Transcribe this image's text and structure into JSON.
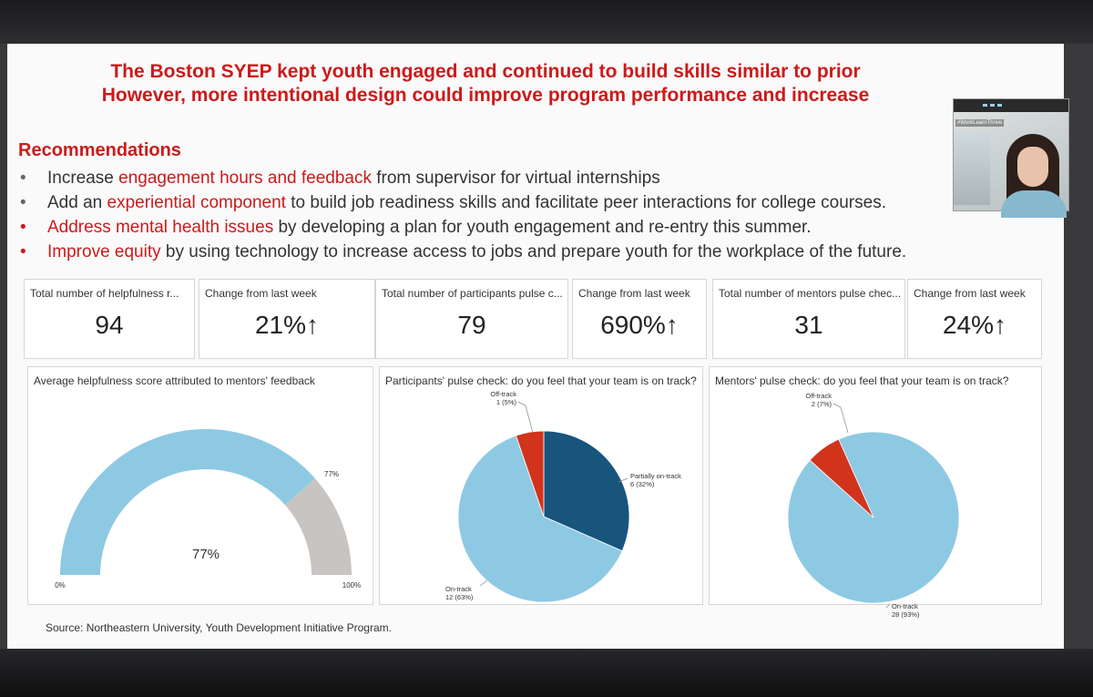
{
  "headline": {
    "line1": "The Boston SYEP kept youth engaged and continued to build skills similar to prior",
    "line2": "However, more intentional design could improve program performance and increase"
  },
  "recommendations": {
    "title": "Recommendations",
    "items": [
      {
        "prefix": "Increase ",
        "highlight": "engagement hours and feedback",
        "rest": " from supervisor for virtual internships"
      },
      {
        "prefix": "Add an ",
        "highlight": "experiential component",
        "rest": " to build job readiness skills and facilitate peer interactions for college courses."
      },
      {
        "prefix": "",
        "highlight": "Address mental health issues",
        "rest": " by developing a plan for youth engagement and re-entry this summer."
      },
      {
        "prefix": "",
        "highlight": "Improve equity",
        "rest": " by using technology to increase access to jobs and prepare youth for the workplace of the future."
      }
    ]
  },
  "kpis": [
    {
      "label": "Total number of helpfulness r...",
      "value": "94"
    },
    {
      "label": "Change from last week",
      "value": "21%↑"
    },
    {
      "label": "Total number of participants pulse c...",
      "value": "79"
    },
    {
      "label": "Change from last week",
      "value": "690%↑"
    },
    {
      "label": "Total number of mentors pulse chec...",
      "value": "31"
    },
    {
      "label": "Change from last week",
      "value": "24%↑"
    }
  ],
  "webcam": {
    "tag": "#WorkLearnThrive"
  },
  "source": "Source: Northeastern University, Youth Development Initiative Program.",
  "colors": {
    "accent_red": "#cc1a1a",
    "light_blue": "#8ec9e3",
    "dark_blue": "#17557d",
    "pie_red": "#d2331c",
    "gauge_gray": "#c8c4c2"
  },
  "chart_data": [
    {
      "type": "gauge",
      "title": "Average helpfulness score attributed to mentors' feedback",
      "value": 77,
      "min": 0,
      "max": 100,
      "labels": {
        "value": "77%",
        "marker": "77%",
        "min": "0%",
        "max": "100%"
      }
    },
    {
      "type": "pie",
      "title": "Participants' pulse check: do you feel that your team is on track?",
      "slices": [
        {
          "name": "Partially on-track",
          "value": 6,
          "label": "6 (32%)",
          "color": "#17557d"
        },
        {
          "name": "On-track",
          "value": 12,
          "label": "12 (63%)",
          "color": "#8ec9e3"
        },
        {
          "name": "Off-track",
          "value": 1,
          "label": "1 (5%)",
          "color": "#d2331c"
        }
      ]
    },
    {
      "type": "pie",
      "title": "Mentors' pulse check: do you feel that your team is on track?",
      "slices": [
        {
          "name": "On-track",
          "value": 28,
          "label": "28 (93%)",
          "color": "#8ec9e3"
        },
        {
          "name": "Off-track",
          "value": 2,
          "label": "2 (7%)",
          "color": "#d2331c"
        }
      ]
    }
  ]
}
